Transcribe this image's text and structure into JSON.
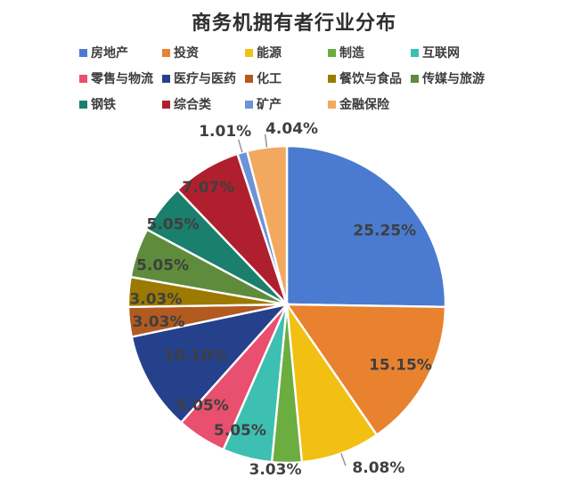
{
  "page": {
    "title": "商务机拥有者行业分布"
  },
  "chart_data": {
    "type": "pie",
    "title": "商务机拥有者行业分布",
    "legend_position": "top",
    "grid": false,
    "label_format": "percent",
    "start_angle_deg": 0,
    "direction": "clockwise",
    "slices": [
      {
        "name": "房地产",
        "value": 25.25,
        "label": "25.25%",
        "color": "#4a7bd0"
      },
      {
        "name": "投资",
        "value": 15.15,
        "label": "15.15%",
        "color": "#e8822f"
      },
      {
        "name": "能源",
        "value": 8.08,
        "label": "8.08%",
        "color": "#f2c013"
      },
      {
        "name": "制造",
        "value": 3.03,
        "label": "3.03%",
        "color": "#6cad3f"
      },
      {
        "name": "互联网",
        "value": 5.05,
        "label": "5.05%",
        "color": "#3dbfb2"
      },
      {
        "name": "零售与物流",
        "value": 5.05,
        "label": "5.05%",
        "color": "#e94f6e"
      },
      {
        "name": "医疗与医药",
        "value": 10.1,
        "label": "10.10%",
        "color": "#25418c"
      },
      {
        "name": "化工",
        "value": 3.03,
        "label": "3.03%",
        "color": "#b25a1f"
      },
      {
        "name": "餐饮与食品",
        "value": 3.03,
        "label": "3.03%",
        "color": "#9c7a00"
      },
      {
        "name": "传媒与旅游",
        "value": 5.05,
        "label": "5.05%",
        "color": "#5e8c3c"
      },
      {
        "name": "钢铁",
        "value": 5.05,
        "label": "5.05%",
        "color": "#1b7f6d"
      },
      {
        "name": "综合类",
        "value": 7.07,
        "label": "7.07%",
        "color": "#b01f2e"
      },
      {
        "name": "矿产",
        "value": 1.01,
        "label": "1.01%",
        "color": "#6b93d6"
      },
      {
        "name": "金融保险",
        "value": 4.04,
        "label": "4.04%",
        "color": "#f2a95f"
      }
    ]
  }
}
